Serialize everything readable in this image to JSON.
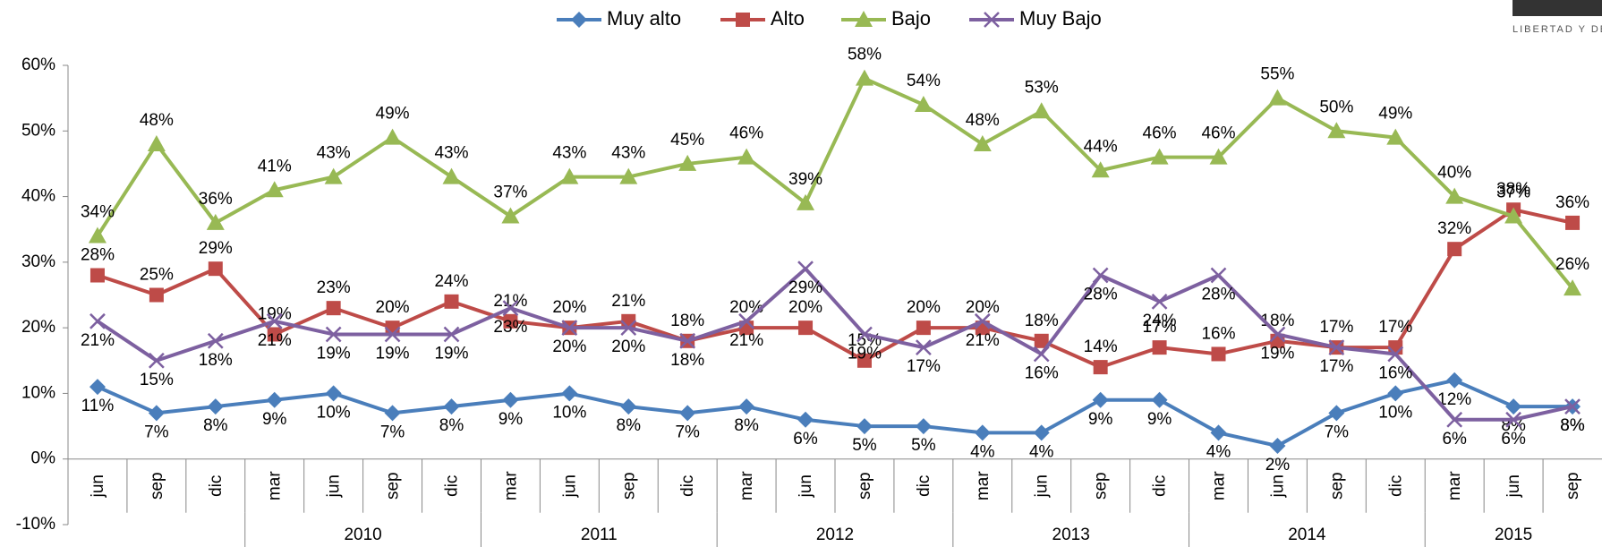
{
  "chart_data": {
    "type": "line",
    "logo_text": "LIBERTAD Y DE",
    "categories": [
      "jun",
      "sep",
      "dic",
      "mar",
      "jun",
      "sep",
      "dic",
      "mar",
      "jun",
      "sep",
      "dic",
      "mar",
      "jun",
      "sep",
      "dic",
      "mar",
      "jun",
      "sep",
      "dic",
      "mar",
      "jun",
      "sep",
      "dic",
      "mar",
      "jun",
      "sep"
    ],
    "years": [
      null,
      null,
      null,
      "2010",
      null,
      null,
      null,
      "2011",
      null,
      null,
      null,
      "2012",
      null,
      null,
      null,
      "2013",
      null,
      null,
      null,
      "2014",
      null,
      null,
      null,
      "2015",
      null,
      null
    ],
    "ylim": [
      -10,
      60
    ],
    "yticks": [
      {
        "value": -10,
        "label": "-10%"
      },
      {
        "value": 0,
        "label": "0%"
      },
      {
        "value": 10,
        "label": "10%"
      },
      {
        "value": 20,
        "label": "20%"
      },
      {
        "value": 30,
        "label": "30%"
      },
      {
        "value": 40,
        "label": "40%"
      },
      {
        "value": 50,
        "label": "50%"
      },
      {
        "value": 60,
        "label": "60%"
      }
    ],
    "grid": false,
    "legend": "top",
    "series": [
      {
        "name": "Muy alto",
        "color": "#4a7ebb",
        "marker": "diamond",
        "values": [
          11,
          7,
          8,
          9,
          10,
          7,
          8,
          9,
          10,
          8,
          7,
          8,
          6,
          5,
          5,
          4,
          4,
          9,
          9,
          4,
          2,
          7,
          10,
          12,
          8,
          8
        ],
        "value_labels": [
          "11%",
          "7%",
          "8%",
          "9%",
          "10%",
          "7%",
          "8%",
          "9%",
          "10%",
          "8%",
          "7%",
          "8%",
          "6%",
          "5%",
          "5%",
          "4%",
          "4%",
          "9%",
          "9%",
          "4%",
          "2%",
          "7%",
          "10%",
          "12%",
          "8%",
          "8%"
        ]
      },
      {
        "name": "Alto",
        "color": "#be4b48",
        "marker": "square",
        "values": [
          28,
          25,
          29,
          19,
          23,
          20,
          24,
          21,
          20,
          21,
          18,
          20,
          20,
          15,
          20,
          20,
          18,
          14,
          17,
          16,
          18,
          17,
          17,
          32,
          38,
          36
        ],
        "value_labels": [
          "28%",
          "25%",
          "29%",
          "19%",
          "23%",
          "20%",
          "24%",
          "21%",
          "20%",
          "21%",
          "18%",
          "20%",
          "20%",
          "15%",
          "20%",
          "20%",
          "18%",
          "14%",
          "17%",
          "16%",
          "18%",
          "17%",
          "17%",
          "32%",
          "38%",
          "36%"
        ]
      },
      {
        "name": "Bajo",
        "color": "#98b954",
        "marker": "triangle",
        "values": [
          34,
          48,
          36,
          41,
          43,
          49,
          43,
          37,
          43,
          43,
          45,
          46,
          39,
          58,
          54,
          48,
          53,
          44,
          46,
          46,
          55,
          50,
          49,
          40,
          37,
          26
        ],
        "value_labels": [
          "34%",
          "48%",
          "36%",
          "41%",
          "43%",
          "49%",
          "43%",
          "37%",
          "43%",
          "43%",
          "45%",
          "46%",
          "39%",
          "58%",
          "54%",
          "48%",
          "53%",
          "44%",
          "46%",
          "46%",
          "55%",
          "50%",
          "49%",
          "40%",
          "37%",
          "26%"
        ]
      },
      {
        "name": "Muy Bajo",
        "color": "#7d60a0",
        "marker": "x",
        "values": [
          21,
          15,
          18,
          21,
          19,
          19,
          19,
          23,
          20,
          20,
          18,
          21,
          29,
          19,
          17,
          21,
          16,
          28,
          24,
          28,
          19,
          17,
          16,
          6,
          6,
          8
        ],
        "value_labels": [
          "21%",
          "15%",
          "18%",
          "21%",
          "19%",
          "19%",
          "19%",
          "23%",
          "20%",
          "20%",
          "18%",
          "21%",
          "29%",
          "19%",
          "17%",
          "21%",
          "16%",
          "28%",
          "24%",
          "28%",
          "19%",
          "17%",
          "16%",
          "6%",
          "6%",
          "8%"
        ]
      }
    ]
  }
}
